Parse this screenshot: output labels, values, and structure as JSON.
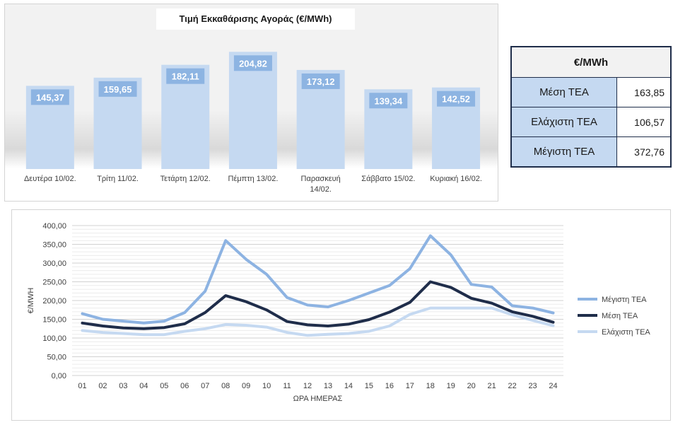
{
  "chart_data": [
    {
      "type": "bar",
      "title": "Τιμή Εκκαθάρισης Αγοράς (€/MWh)",
      "categories": [
        "Δευτέρα 10/02.",
        "Τρίτη 11/02.",
        "Τετάρτη 12/02.",
        "Πέμπτη 13/02.",
        "Παρασκευή 14/02.",
        "Σάββατο 15/02.",
        "Κυριακή 16/02."
      ],
      "category_lines": [
        [
          "Δευτέρα 10/02."
        ],
        [
          "Τρίτη 11/02."
        ],
        [
          "Τετάρτη 12/02."
        ],
        [
          "Πέμπτη 13/02."
        ],
        [
          "Παρασκευή",
          "14/02."
        ],
        [
          "Σάββατο 15/02."
        ],
        [
          "Κυριακή 16/02."
        ]
      ],
      "values": [
        145.37,
        159.65,
        182.11,
        204.82,
        173.12,
        139.34,
        142.52
      ],
      "value_labels": [
        "145,37",
        "159,65",
        "182,11",
        "204,82",
        "173,12",
        "139,34",
        "142,52"
      ],
      "bar_color": "#c5d9f1",
      "label_color": "#8db4e2",
      "xlabel": "",
      "ylabel": "",
      "ylim": [
        0,
        220
      ],
      "grid": false,
      "legend": "none"
    },
    {
      "type": "table",
      "header": "€/MWh",
      "rows": [
        {
          "label": "Μέση ΤΕΑ",
          "value": "163,85"
        },
        {
          "label": "Ελάχιστη ΤΕΑ",
          "value": "106,57"
        },
        {
          "label": "Μέγιστη ΤΕΑ",
          "value": "372,76"
        }
      ]
    },
    {
      "type": "line",
      "title": "",
      "xlabel": "ΩΡΑ ΗΜΕΡΑΣ",
      "ylabel": "€/MWH",
      "x": [
        "01",
        "02",
        "03",
        "04",
        "05",
        "06",
        "07",
        "08",
        "09",
        "10",
        "11",
        "12",
        "13",
        "14",
        "15",
        "16",
        "17",
        "18",
        "19",
        "20",
        "21",
        "22",
        "23",
        "24"
      ],
      "ylim": [
        0,
        400
      ],
      "yticks": [
        "0,00",
        "50,00",
        "100,00",
        "150,00",
        "200,00",
        "250,00",
        "300,00",
        "350,00",
        "400,00"
      ],
      "grid": true,
      "legend": "right",
      "series": [
        {
          "name": "Μέγιστη ΤΕΑ",
          "color": "#8db3e2",
          "values": [
            165,
            150,
            145,
            140,
            145,
            168,
            225,
            360,
            310,
            270,
            208,
            188,
            183,
            200,
            220,
            240,
            285,
            372.76,
            322,
            243,
            236,
            186,
            180,
            167
          ]
        },
        {
          "name": "Μέση ΤΕΑ",
          "color": "#1f2d4a",
          "values": [
            140,
            132,
            127,
            125,
            128,
            138,
            168,
            213,
            197,
            175,
            144,
            135,
            132,
            137,
            149,
            169,
            195,
            250,
            235,
            206,
            193,
            170,
            158,
            142
          ]
        },
        {
          "name": "Ελάχιστη ΤΕΑ",
          "color": "#c5d9f1",
          "values": [
            120,
            115,
            112,
            109,
            109,
            118,
            125,
            136,
            134,
            129,
            115,
            107,
            110,
            112,
            118,
            132,
            163,
            180,
            180,
            180,
            180,
            162,
            147,
            133
          ]
        }
      ]
    }
  ]
}
